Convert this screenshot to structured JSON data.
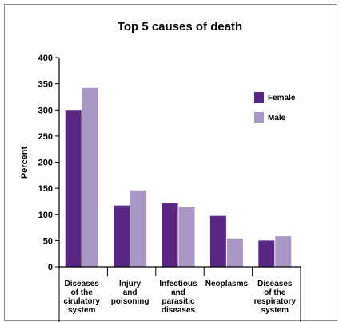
{
  "chart_data": {
    "type": "bar",
    "title": "Top 5 causes of death",
    "ylabel": "Percent",
    "xlabel": "",
    "ylim": [
      0,
      400
    ],
    "yticks": [
      "0",
      "50",
      "100",
      "150",
      "200",
      "250",
      "300",
      "350",
      "400"
    ],
    "categories": [
      [
        "Diseases",
        "of the",
        "cirulatory",
        "system"
      ],
      [
        "Injury",
        "and",
        "poisoning"
      ],
      [
        "Infectious",
        "and",
        "parasitic",
        "diseases"
      ],
      [
        "Neoplasms"
      ],
      [
        "Diseases",
        "of the",
        "respiratory",
        "system"
      ]
    ],
    "series": [
      {
        "name": "Female",
        "color": "#5b2784",
        "values": [
          300,
          117,
          121,
          97,
          50
        ]
      },
      {
        "name": "Male",
        "color": "#a897c6",
        "values": [
          342,
          146,
          115,
          54,
          58
        ]
      }
    ],
    "legend_position": "top-right",
    "grid": false
  }
}
